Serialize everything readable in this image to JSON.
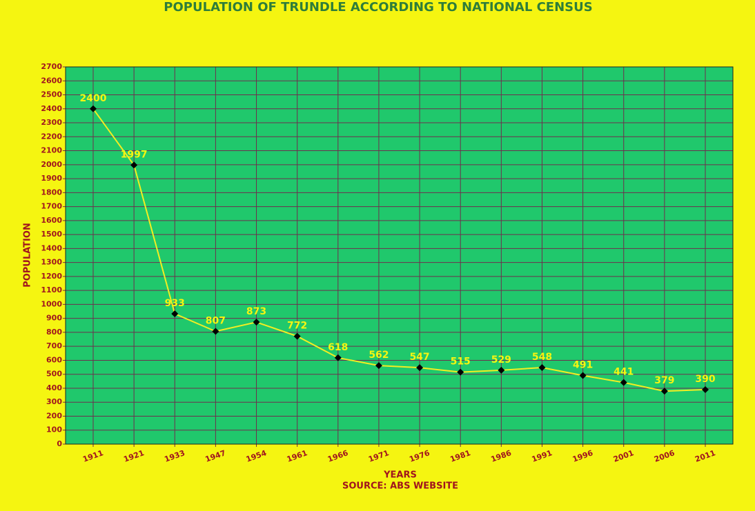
{
  "chart_data": {
    "type": "line",
    "title": "POPULATION OF TRUNDLE ACCORDING TO NATIONAL CENSUS",
    "x_label": "YEARS",
    "source": "SOURCE: ABS WEBSITE",
    "y_label": "POPULATION",
    "categories": [
      "1911",
      "1921",
      "1933",
      "1947",
      "1954",
      "1961",
      "1966",
      "1971",
      "1976",
      "1981",
      "1986",
      "1991",
      "1996",
      "2001",
      "2006",
      "2011"
    ],
    "values": [
      2400,
      1997,
      933,
      807,
      873,
      772,
      618,
      562,
      547,
      515,
      529,
      548,
      491,
      441,
      379,
      390
    ],
    "color": "#f2ee22",
    "marker_color": "#000000",
    "ylim": [
      0,
      2700
    ],
    "yticks": [
      0,
      100,
      200,
      300,
      400,
      500,
      600,
      700,
      800,
      900,
      1000,
      1100,
      1200,
      1300,
      1400,
      1500,
      1600,
      1700,
      1800,
      1900,
      2000,
      2100,
      2200,
      2300,
      2400,
      2500,
      2600,
      2700
    ],
    "grid": true
  }
}
